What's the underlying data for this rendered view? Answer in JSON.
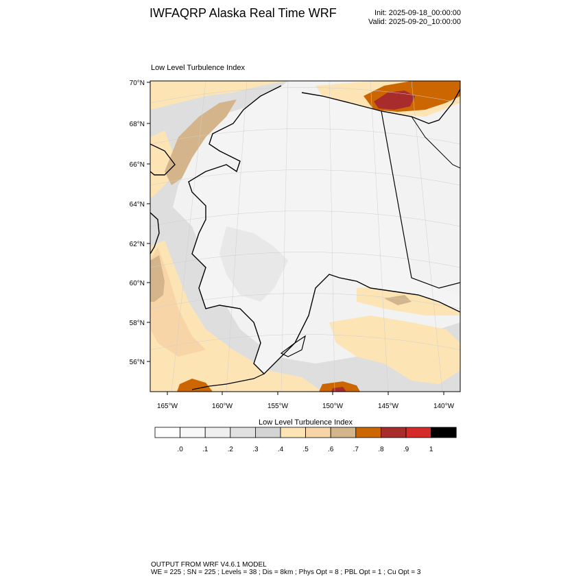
{
  "header": {
    "title": "IWFAQRP Alaska Real Time WRF",
    "init": "Init: 2025-09-18_00:00:00",
    "valid": "Valid: 2025-09-20_10:00:00"
  },
  "plot": {
    "label": "Low Level Turbulence Index",
    "lat_labels": [
      "70°N",
      "68°N",
      "66°N",
      "64°N",
      "62°N",
      "60°N",
      "58°N",
      "56°N"
    ],
    "lon_labels": [
      "165°W",
      "160°W",
      "155°W",
      "150°W",
      "145°W",
      "140°W"
    ]
  },
  "colorbar": {
    "title": "Low Level Turbulence Index",
    "colors": [
      "#ffffff",
      "#f8f8f8",
      "#efefef",
      "#e1e1e1",
      "#d4d4d4",
      "#fde4b5",
      "#f8d5a6",
      "#d4b48a",
      "#cc6600",
      "#a82c2c",
      "#d42a2a",
      "#000000"
    ],
    "labels": [
      ".0",
      ".1",
      ".2",
      ".3",
      ".4",
      ".5",
      ".6",
      ".7",
      ".8",
      ".9",
      "1"
    ]
  },
  "footer": {
    "line1": "OUTPUT FROM WRF V4.6.1 MODEL",
    "line2": "WE = 225 ; SN = 225 ; Levels = 38 ; Dis = 8km ; Phys Opt = 8 ; PBL Opt = 1 ; Cu Opt = 3"
  }
}
